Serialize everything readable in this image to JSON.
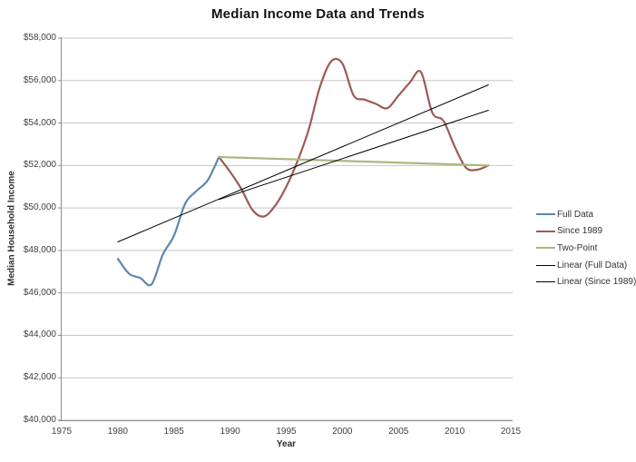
{
  "chart_data": {
    "type": "line",
    "title": "Median Income Data and Trends",
    "xlabel": "Year",
    "ylabel": "Median Household Income",
    "xlim": [
      1975,
      2015
    ],
    "ylim": [
      40000,
      58000
    ],
    "grid": "horizontal",
    "legend_position": "right",
    "x_ticks": [
      {
        "value": 1975,
        "label": "1975"
      },
      {
        "value": 1980,
        "label": "1980"
      },
      {
        "value": 1985,
        "label": "1985"
      },
      {
        "value": 1990,
        "label": "1990"
      },
      {
        "value": 1995,
        "label": "1995"
      },
      {
        "value": 2000,
        "label": "2000"
      },
      {
        "value": 2005,
        "label": "2005"
      },
      {
        "value": 2010,
        "label": "2010"
      },
      {
        "value": 2015,
        "label": "2015"
      }
    ],
    "y_ticks": [
      {
        "value": 40000,
        "label": "$40,000"
      },
      {
        "value": 42000,
        "label": "$42,000"
      },
      {
        "value": 44000,
        "label": "$44,000"
      },
      {
        "value": 46000,
        "label": "$46,000"
      },
      {
        "value": 48000,
        "label": "$48,000"
      },
      {
        "value": 50000,
        "label": "$50,000"
      },
      {
        "value": 52000,
        "label": "$52,000"
      },
      {
        "value": 54000,
        "label": "$54,000"
      },
      {
        "value": 56000,
        "label": "$56,000"
      },
      {
        "value": 58000,
        "label": "$58,000"
      }
    ],
    "series": [
      {
        "name": "Full Data",
        "color": "#5E86AF",
        "line_width": 2.2,
        "smooth": true,
        "x": [
          1980,
          1981,
          1982,
          1983,
          1984,
          1985,
          1986,
          1987,
          1988,
          1989
        ],
        "values": [
          47600,
          46900,
          46700,
          46400,
          47800,
          48700,
          50200,
          50800,
          51300,
          52400
        ]
      },
      {
        "name": "Since 1989",
        "color": "#9E5A56",
        "line_width": 2.2,
        "smooth": true,
        "x": [
          1989,
          1990,
          1991,
          1992,
          1993,
          1994,
          1995,
          1996,
          1997,
          1998,
          1999,
          2000,
          2001,
          2002,
          2003,
          2004,
          2005,
          2006,
          2007,
          2008,
          2009,
          2010,
          2011,
          2012,
          2013
        ],
        "values": [
          52400,
          51700,
          50900,
          49900,
          49600,
          50100,
          51000,
          52200,
          53700,
          55700,
          56900,
          56800,
          55300,
          55100,
          54900,
          54700,
          55300,
          55900,
          56400,
          54500,
          54100,
          52900,
          51900,
          51800,
          52000
        ]
      },
      {
        "name": "Two-Point",
        "color": "#ABB77E",
        "line_width": 2.2,
        "smooth": false,
        "x": [
          1989,
          2013
        ],
        "values": [
          52400,
          52000
        ]
      },
      {
        "name": "Linear (Full Data)",
        "color": "#000000",
        "line_width": 1,
        "smooth": false,
        "x": [
          1980,
          2013
        ],
        "values": [
          48400,
          55800
        ]
      },
      {
        "name": "Linear (Since 1989)",
        "color": "#000000",
        "line_width": 1,
        "smooth": false,
        "x": [
          1989,
          2013
        ],
        "values": [
          50400,
          54600
        ]
      }
    ],
    "colors": {
      "gridline": "#c6c6c6",
      "axis_line": "#8c8c8c",
      "background": "#ffffff"
    }
  }
}
